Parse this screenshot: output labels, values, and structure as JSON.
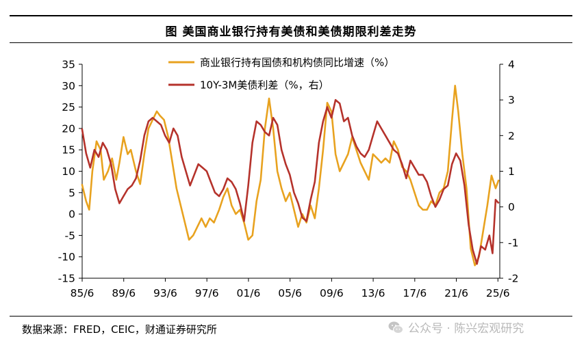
{
  "title": "图  美国商业银行持有美债和美债期限利差走势",
  "source": "数据来源：FRED，CEIC，财通证券研究所",
  "watermark": "公众号 · 陈兴宏观研究",
  "chart_data": {
    "type": "line",
    "x_tick_labels": [
      "85/6",
      "89/6",
      "93/6",
      "97/6",
      "01/6",
      "05/6",
      "09/6",
      "13/6",
      "17/6",
      "21/6",
      "25/6"
    ],
    "x_range": [
      1985.42,
      2025.6
    ],
    "y_left": {
      "range": [
        -15,
        35
      ],
      "ticks": [
        35,
        30,
        25,
        20,
        15,
        10,
        5,
        0,
        -5,
        -10,
        -15
      ]
    },
    "y_right": {
      "range": [
        -2,
        4
      ],
      "ticks": [
        4,
        3,
        2,
        1,
        0,
        -1,
        -2
      ]
    },
    "legend_position": "top-center",
    "grid": false,
    "series": [
      {
        "name": "商业银行持有国债和机构债同比增速（%）",
        "axis": "left",
        "color": "#E8A21F",
        "x": [
          1985.4,
          1985.8,
          1986.1,
          1986.4,
          1986.8,
          1987.2,
          1987.5,
          1987.9,
          1988.3,
          1988.7,
          1989.0,
          1989.4,
          1989.8,
          1990.1,
          1990.6,
          1991.0,
          1991.4,
          1991.8,
          1992.2,
          1992.6,
          1992.9,
          1993.3,
          1993.7,
          1994.1,
          1994.5,
          1994.9,
          1995.3,
          1995.7,
          1996.1,
          1996.5,
          1996.9,
          1997.3,
          1997.7,
          1998.1,
          1998.6,
          1999.0,
          1999.4,
          1999.8,
          2000.2,
          2000.6,
          2001.0,
          2001.4,
          2001.8,
          2002.2,
          2002.6,
          2003.0,
          2003.4,
          2003.8,
          2004.2,
          2004.6,
          2005.0,
          2005.4,
          2005.8,
          2006.2,
          2006.6,
          2007.0,
          2007.4,
          2007.8,
          2008.2,
          2008.6,
          2009.0,
          2009.4,
          2009.8,
          2010.2,
          2010.6,
          2011.0,
          2011.4,
          2011.8,
          2012.2,
          2012.6,
          2013.0,
          2013.4,
          2013.8,
          2014.2,
          2014.6,
          2015.0,
          2015.4,
          2015.8,
          2016.2,
          2016.6,
          2017.0,
          2017.4,
          2017.8,
          2018.2,
          2018.6,
          2019.0,
          2019.4,
          2019.8,
          2020.2,
          2020.6,
          2021.0,
          2021.3,
          2021.6,
          2022.0,
          2022.4,
          2022.8,
          2023.2,
          2023.6,
          2024.0,
          2024.4,
          2024.8,
          2025.2,
          2025.5
        ],
        "values": [
          7,
          3,
          1,
          10,
          17,
          15,
          8,
          10,
          13,
          8,
          12,
          18,
          14,
          15,
          10,
          7,
          14,
          20,
          22,
          24,
          23,
          22,
          18,
          12,
          6,
          2,
          -2,
          -6,
          -5,
          -3,
          -1,
          -3,
          -1,
          -2,
          1,
          4,
          6,
          2,
          0,
          1,
          -2,
          -6,
          -5,
          3,
          8,
          20,
          27,
          20,
          10,
          6,
          3,
          5,
          1,
          -3,
          0,
          -2,
          2,
          -1,
          6,
          15,
          26,
          24,
          14,
          10,
          12,
          14,
          18,
          15,
          12,
          10,
          8,
          14,
          13,
          12,
          13,
          12,
          17,
          15,
          11,
          10,
          8,
          5,
          2,
          1,
          1,
          3,
          2,
          5,
          6,
          10,
          22,
          30,
          24,
          14,
          6,
          -8,
          -12,
          -10,
          -4,
          2,
          9,
          6,
          8
        ]
      },
      {
        "name": "10Y-3M美债利差（%，右）",
        "axis": "right",
        "color": "#B5322B",
        "x": [
          1985.4,
          1985.8,
          1986.2,
          1986.6,
          1987.0,
          1987.4,
          1987.8,
          1988.2,
          1988.6,
          1989.0,
          1989.4,
          1989.8,
          1990.2,
          1990.6,
          1991.0,
          1991.4,
          1991.8,
          1992.2,
          1992.6,
          1993.0,
          1993.4,
          1993.8,
          1994.2,
          1994.6,
          1995.0,
          1995.4,
          1995.8,
          1996.2,
          1996.6,
          1997.0,
          1997.4,
          1997.8,
          1998.2,
          1998.6,
          1999.0,
          1999.4,
          1999.8,
          2000.2,
          2000.6,
          2001.0,
          2001.4,
          2001.8,
          2002.2,
          2002.6,
          2003.0,
          2003.4,
          2003.8,
          2004.2,
          2004.6,
          2005.0,
          2005.4,
          2005.8,
          2006.2,
          2006.6,
          2007.0,
          2007.4,
          2007.8,
          2008.2,
          2008.6,
          2009.0,
          2009.4,
          2009.8,
          2010.2,
          2010.6,
          2011.0,
          2011.4,
          2011.8,
          2012.2,
          2012.6,
          2013.0,
          2013.4,
          2013.8,
          2014.2,
          2014.6,
          2015.0,
          2015.4,
          2015.8,
          2016.2,
          2016.6,
          2017.0,
          2017.4,
          2017.8,
          2018.2,
          2018.6,
          2019.0,
          2019.4,
          2019.8,
          2020.2,
          2020.6,
          2021.0,
          2021.4,
          2021.8,
          2022.2,
          2022.6,
          2023.0,
          2023.4,
          2023.8,
          2024.2,
          2024.6,
          2024.9,
          2025.2,
          2025.5
        ],
        "values": [
          2.2,
          1.5,
          1.1,
          1.6,
          1.4,
          1.8,
          1.6,
          1.2,
          0.5,
          0.1,
          0.3,
          0.5,
          0.6,
          0.8,
          1.3,
          2.0,
          2.4,
          2.5,
          2.4,
          2.3,
          2.0,
          1.8,
          2.2,
          2.0,
          1.4,
          1.0,
          0.6,
          0.9,
          1.2,
          1.1,
          1.0,
          0.7,
          0.4,
          0.3,
          0.5,
          0.8,
          0.7,
          0.5,
          0.1,
          -0.4,
          0.6,
          1.8,
          2.4,
          2.3,
          2.1,
          2.0,
          2.5,
          2.3,
          1.6,
          1.2,
          0.9,
          0.4,
          0.1,
          -0.3,
          -0.4,
          0.2,
          0.7,
          1.8,
          2.4,
          2.8,
          2.5,
          3.0,
          2.9,
          2.4,
          2.5,
          2.0,
          1.7,
          1.5,
          1.4,
          1.6,
          2.0,
          2.4,
          2.2,
          2.0,
          1.8,
          1.6,
          1.5,
          1.2,
          0.8,
          1.3,
          1.1,
          0.9,
          0.9,
          0.7,
          0.3,
          0.0,
          0.2,
          0.5,
          0.6,
          1.2,
          1.5,
          1.3,
          0.6,
          -0.5,
          -1.2,
          -1.6,
          -1.1,
          -1.2,
          -0.8,
          -1.3,
          0.2,
          0.1
        ]
      }
    ]
  }
}
